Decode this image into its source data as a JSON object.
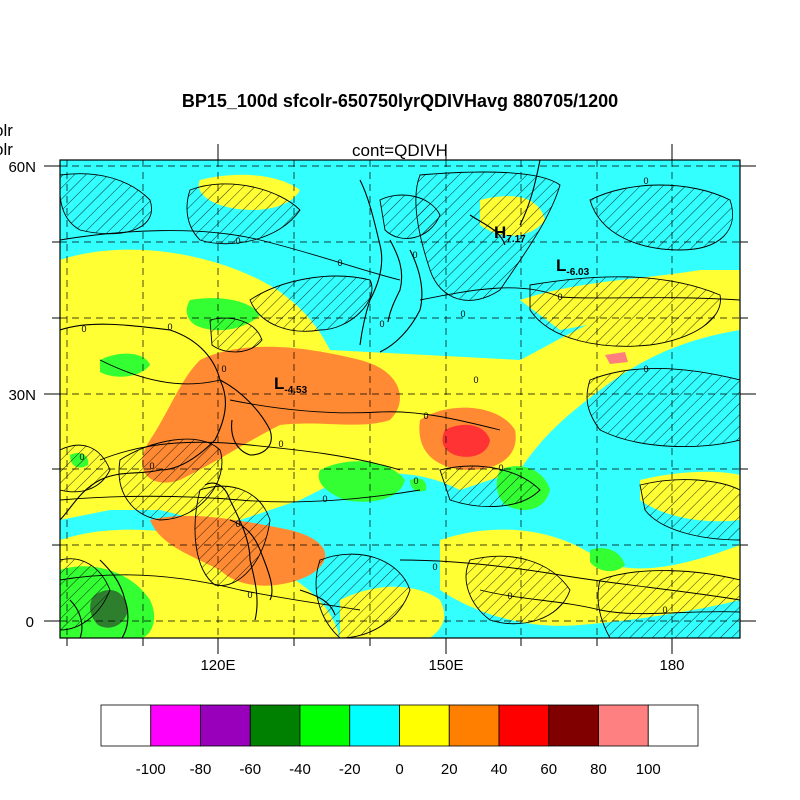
{
  "title": "BP15_100d sfcolr-650750lyrQDIVHavg  880705/1200",
  "subtitle": "cont=QDIVH",
  "left_labels": [
    "olr",
    "olr"
  ],
  "lat_ticks": [
    "60N",
    "30N",
    "0"
  ],
  "lon_ticks": [
    "120E",
    "150E",
    "180"
  ],
  "highs_lows": [
    {
      "symbol": "L",
      "value": "-4.53"
    },
    {
      "symbol": "H",
      "value": "7.17"
    },
    {
      "symbol": "L",
      "value": "-6.03"
    }
  ],
  "contour_label": "0",
  "colorbar": {
    "labels": [
      "-100",
      "-80",
      "-60",
      "-40",
      "-20",
      "0",
      "20",
      "40",
      "60",
      "80",
      "100"
    ],
    "colors": [
      "#ffffff",
      "#ff00ff",
      "#9900bb",
      "#008000",
      "#00ff00",
      "#00ffff",
      "#ffff00",
      "#ff8000",
      "#ff0000",
      "#800000",
      "#ff8080",
      "#ffffff"
    ]
  },
  "colors": {
    "cyan": "#33ffff",
    "yellow": "#ffff33",
    "orange": "#ff8a33",
    "red": "#ff3333",
    "green": "#33ff33",
    "darkgreen": "#2d7f2d",
    "pink": "#ff7f7f"
  }
}
